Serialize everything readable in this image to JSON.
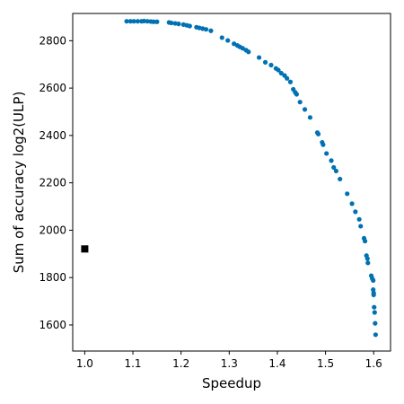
{
  "chart_data": {
    "type": "scatter",
    "title": "",
    "xlabel": "Speedup",
    "ylabel": "Sum of accuracy log2(ULP)",
    "xlim": [
      0.975,
      1.635
    ],
    "ylim": [
      1490,
      2915
    ],
    "grid": false,
    "legend": "none",
    "x_ticks": [
      1.0,
      1.1,
      1.2,
      1.3,
      1.4,
      1.5,
      1.6
    ],
    "x_tick_labels": [
      "1.0",
      "1.1",
      "1.2",
      "1.3",
      "1.4",
      "1.5",
      "1.6"
    ],
    "y_ticks": [
      1600,
      1800,
      2000,
      2200,
      2400,
      2600,
      2800
    ],
    "y_tick_labels": [
      "1600",
      "1800",
      "2000",
      "2200",
      "2400",
      "2600",
      "2800"
    ],
    "series": [
      {
        "marker": "circle",
        "color": "#0072b2",
        "points": [
          [
            1.087,
            2882
          ],
          [
            1.095,
            2882
          ],
          [
            1.102,
            2882
          ],
          [
            1.11,
            2882
          ],
          [
            1.118,
            2882
          ],
          [
            1.123,
            2883
          ],
          [
            1.13,
            2882
          ],
          [
            1.137,
            2881
          ],
          [
            1.143,
            2880
          ],
          [
            1.15,
            2880
          ],
          [
            1.175,
            2877
          ],
          [
            1.18,
            2875
          ],
          [
            1.188,
            2873
          ],
          [
            1.195,
            2871
          ],
          [
            1.205,
            2868
          ],
          [
            1.212,
            2865
          ],
          [
            1.218,
            2862
          ],
          [
            1.232,
            2857
          ],
          [
            1.238,
            2854
          ],
          [
            1.245,
            2851
          ],
          [
            1.252,
            2848
          ],
          [
            1.262,
            2842
          ],
          [
            1.285,
            2813
          ],
          [
            1.297,
            2801
          ],
          [
            1.31,
            2787
          ],
          [
            1.317,
            2780
          ],
          [
            1.322,
            2774
          ],
          [
            1.328,
            2768
          ],
          [
            1.335,
            2760
          ],
          [
            1.34,
            2753
          ],
          [
            1.362,
            2729
          ],
          [
            1.375,
            2709
          ],
          [
            1.387,
            2697
          ],
          [
            1.397,
            2683
          ],
          [
            1.402,
            2676
          ],
          [
            1.408,
            2663
          ],
          [
            1.415,
            2653
          ],
          [
            1.42,
            2641
          ],
          [
            1.427,
            2626
          ],
          [
            1.433,
            2595
          ],
          [
            1.437,
            2582
          ],
          [
            1.44,
            2574
          ],
          [
            1.447,
            2541
          ],
          [
            1.457,
            2510
          ],
          [
            1.468,
            2476
          ],
          [
            1.483,
            2412
          ],
          [
            1.485,
            2406
          ],
          [
            1.493,
            2371
          ],
          [
            1.495,
            2361
          ],
          [
            1.502,
            2324
          ],
          [
            1.512,
            2294
          ],
          [
            1.517,
            2265
          ],
          [
            1.522,
            2250
          ],
          [
            1.53,
            2216
          ],
          [
            1.545,
            2154
          ],
          [
            1.555,
            2112
          ],
          [
            1.562,
            2078
          ],
          [
            1.57,
            2046
          ],
          [
            1.573,
            2017
          ],
          [
            1.58,
            1966
          ],
          [
            1.582,
            1954
          ],
          [
            1.585,
            1893
          ],
          [
            1.587,
            1880
          ],
          [
            1.588,
            1862
          ],
          [
            1.595,
            1808
          ],
          [
            1.597,
            1796
          ],
          [
            1.599,
            1788
          ],
          [
            1.599,
            1749
          ],
          [
            1.6,
            1735
          ],
          [
            1.6,
            1727
          ],
          [
            1.601,
            1675
          ],
          [
            1.602,
            1653
          ],
          [
            1.603,
            1607
          ],
          [
            1.604,
            1559
          ]
        ]
      },
      {
        "marker": "square",
        "color": "#000000",
        "points": [
          [
            1.0,
            1921
          ]
        ]
      }
    ]
  }
}
